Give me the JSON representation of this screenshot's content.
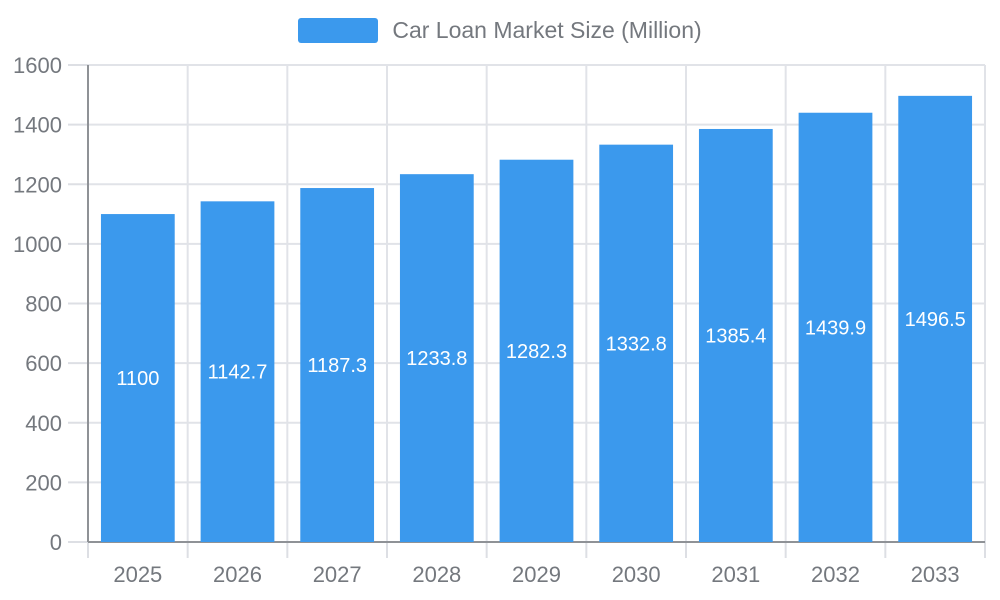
{
  "legend": {
    "label": "Car Loan Market Size (Million)"
  },
  "chart_data": {
    "type": "bar",
    "title": "Car Loan Market Size (Million)",
    "categories": [
      "2025",
      "2026",
      "2027",
      "2028",
      "2029",
      "2030",
      "2031",
      "2032",
      "2033"
    ],
    "series": [
      {
        "name": "Car Loan Market Size (Million)",
        "values": [
          1100,
          1142.7,
          1187.3,
          1233.8,
          1282.3,
          1332.8,
          1385.4,
          1439.9,
          1496.5
        ]
      }
    ],
    "data_labels": [
      "1100",
      "1142.7",
      "1187.3",
      "1233.8",
      "1282.3",
      "1332.8",
      "1385.4",
      "1439.9",
      "1496.5"
    ],
    "xlabel": "",
    "ylabel": "",
    "ylim": [
      0,
      1600
    ],
    "ytick_step": 200,
    "yticks": [
      0,
      200,
      400,
      600,
      800,
      1000,
      1200,
      1400,
      1600
    ],
    "grid": true,
    "legend_position": "top"
  },
  "colors": {
    "bar": "#3B99ED",
    "axis_line": "#8F9296",
    "grid": "#E1E3E8",
    "tick": "#DDDFE4",
    "axis_text": "#74787E",
    "bar_label_text": "#FFFFFF"
  }
}
